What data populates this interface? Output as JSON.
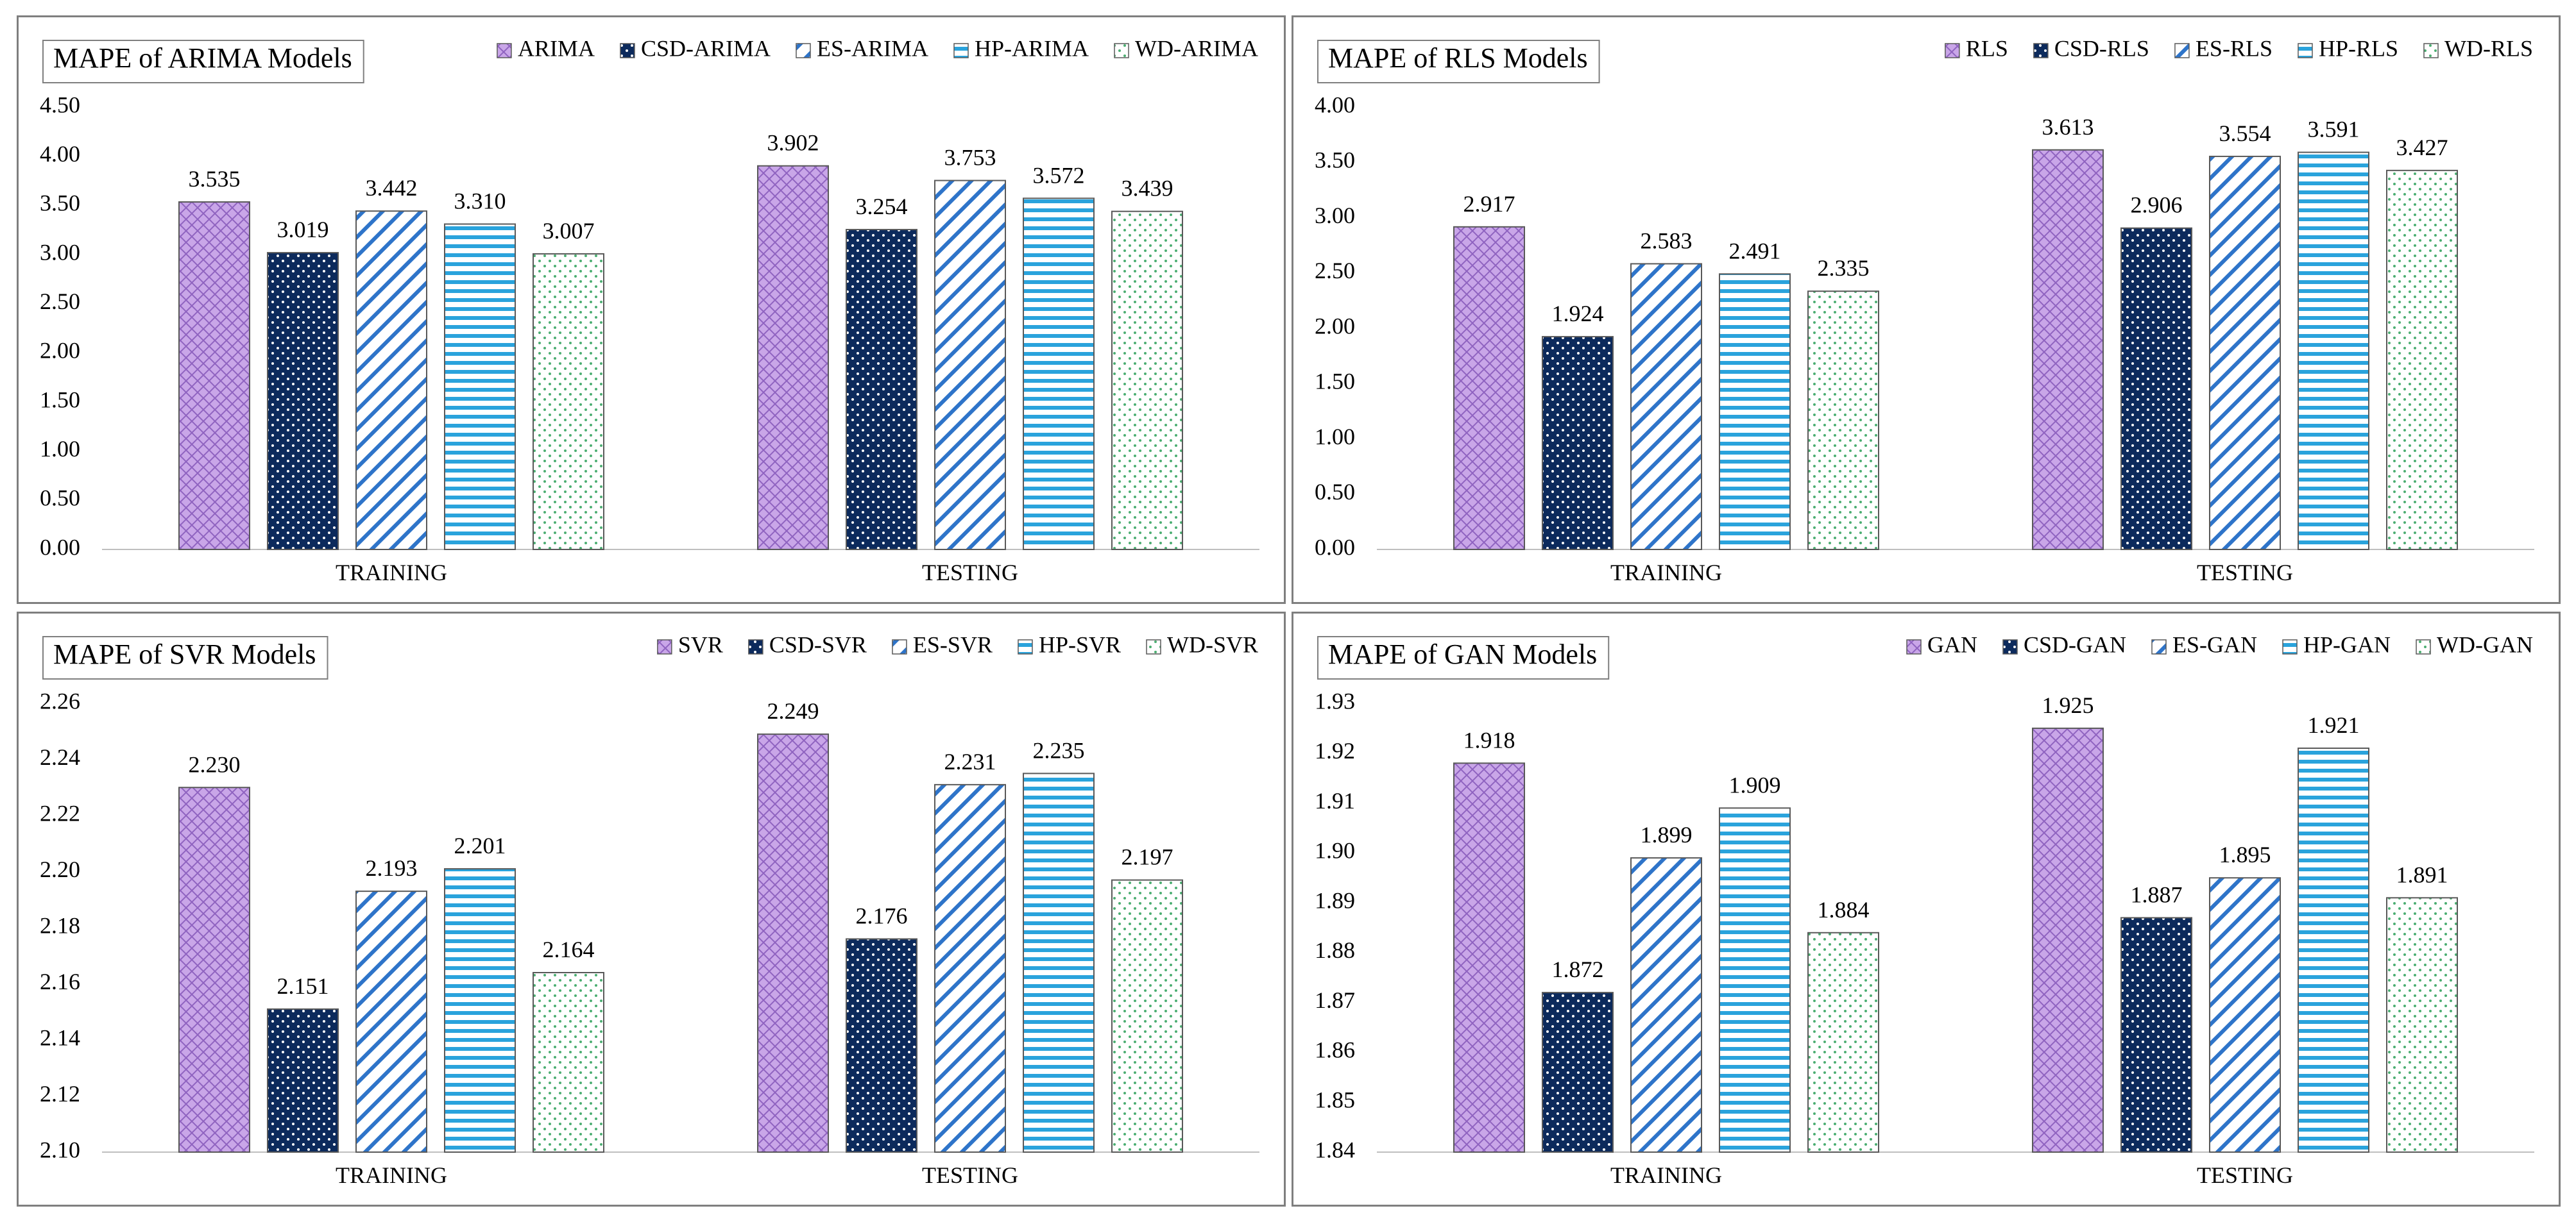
{
  "chart_data": [
    {
      "type": "bar",
      "title": "MAPE of ARIMA Models",
      "categories": [
        "TRAINING",
        "TESTING"
      ],
      "series": [
        {
          "name": "ARIMA",
          "values": [
            3.535,
            3.902
          ],
          "labels": [
            "3.535",
            "3.902"
          ]
        },
        {
          "name": "CSD-ARIMA",
          "values": [
            3.019,
            3.254
          ],
          "labels": [
            "3.019",
            "3.254"
          ]
        },
        {
          "name": "ES-ARIMA",
          "values": [
            3.442,
            3.753
          ],
          "labels": [
            "3.442",
            "3.753"
          ]
        },
        {
          "name": "HP-ARIMA",
          "values": [
            3.31,
            3.572
          ],
          "labels": [
            "3.310",
            "3.572"
          ]
        },
        {
          "name": "WD-ARIMA",
          "values": [
            3.007,
            3.439
          ],
          "labels": [
            "3.007",
            "3.439"
          ]
        }
      ],
      "ylim": [
        0,
        4.5
      ],
      "yticks": [
        "0.00",
        "0.50",
        "1.00",
        "1.50",
        "2.00",
        "2.50",
        "3.00",
        "3.50",
        "4.00",
        "4.50"
      ],
      "xlabel": "",
      "ylabel": "",
      "legend_position": "top-right",
      "grid": false
    },
    {
      "type": "bar",
      "title": "MAPE of RLS Models",
      "categories": [
        "TRAINING",
        "TESTING"
      ],
      "series": [
        {
          "name": "RLS",
          "values": [
            2.917,
            3.613
          ],
          "labels": [
            "2.917",
            "3.613"
          ]
        },
        {
          "name": "CSD-RLS",
          "values": [
            1.924,
            2.906
          ],
          "labels": [
            "1.924",
            "2.906"
          ]
        },
        {
          "name": "ES-RLS",
          "values": [
            2.583,
            3.554
          ],
          "labels": [
            "2.583",
            "3.554"
          ]
        },
        {
          "name": "HP-RLS",
          "values": [
            2.491,
            3.591
          ],
          "labels": [
            "2.491",
            "3.591"
          ]
        },
        {
          "name": "WD-RLS",
          "values": [
            2.335,
            3.427
          ],
          "labels": [
            "2.335",
            "3.427"
          ]
        }
      ],
      "ylim": [
        0,
        4
      ],
      "yticks": [
        "0.00",
        "0.50",
        "1.00",
        "1.50",
        "2.00",
        "2.50",
        "3.00",
        "3.50",
        "4.00"
      ],
      "xlabel": "",
      "ylabel": "",
      "legend_position": "top-right",
      "grid": false
    },
    {
      "type": "bar",
      "title": "MAPE of SVR Models",
      "categories": [
        "TRAINING",
        "TESTING"
      ],
      "series": [
        {
          "name": "SVR",
          "values": [
            2.23,
            2.249
          ],
          "labels": [
            "2.230",
            "2.249"
          ]
        },
        {
          "name": "CSD-SVR",
          "values": [
            2.151,
            2.176
          ],
          "labels": [
            "2.151",
            "2.176"
          ]
        },
        {
          "name": "ES-SVR",
          "values": [
            2.193,
            2.231
          ],
          "labels": [
            "2.193",
            "2.231"
          ]
        },
        {
          "name": "HP-SVR",
          "values": [
            2.201,
            2.235
          ],
          "labels": [
            "2.201",
            "2.235"
          ]
        },
        {
          "name": "WD-SVR",
          "values": [
            2.164,
            2.197
          ],
          "labels": [
            "2.164",
            "2.197"
          ]
        }
      ],
      "ylim": [
        2.1,
        2.26
      ],
      "yticks": [
        "2.10",
        "2.12",
        "2.14",
        "2.16",
        "2.18",
        "2.20",
        "2.22",
        "2.24",
        "2.26"
      ],
      "xlabel": "",
      "ylabel": "",
      "legend_position": "top-right",
      "grid": false
    },
    {
      "type": "bar",
      "title": "MAPE of GAN Models",
      "categories": [
        "TRAINING",
        "TESTING"
      ],
      "series": [
        {
          "name": "GAN",
          "values": [
            1.918,
            1.925
          ],
          "labels": [
            "1.918",
            "1.925"
          ]
        },
        {
          "name": "CSD-GAN",
          "values": [
            1.872,
            1.887
          ],
          "labels": [
            "1.872",
            "1.887"
          ]
        },
        {
          "name": "ES-GAN",
          "values": [
            1.899,
            1.895
          ],
          "labels": [
            "1.899",
            "1.895"
          ]
        },
        {
          "name": "HP-GAN",
          "values": [
            1.909,
            1.921
          ],
          "labels": [
            "1.909",
            "1.921"
          ]
        },
        {
          "name": "WD-GAN",
          "values": [
            1.884,
            1.891
          ],
          "labels": [
            "1.884",
            "1.891"
          ]
        }
      ],
      "ylim": [
        1.84,
        1.93
      ],
      "yticks": [
        "1.84",
        "1.85",
        "1.86",
        "1.87",
        "1.88",
        "1.89",
        "1.90",
        "1.91",
        "1.92",
        "1.93"
      ],
      "xlabel": "",
      "ylabel": "",
      "legend_position": "top-right",
      "grid": false
    }
  ],
  "series_styles": [
    {
      "pattern": "diamond-grid",
      "fill": "#c9a6e8",
      "line": "#8f63c0"
    },
    {
      "pattern": "dots",
      "fill": "#0c2a5c",
      "line": "#ffffff"
    },
    {
      "pattern": "diagonal-stripes",
      "fill": "#ffffff",
      "line": "#2e74c9"
    },
    {
      "pattern": "horizontal-stripes",
      "fill": "#ffffff",
      "line": "#2aa3dc"
    },
    {
      "pattern": "dots",
      "fill": "#ffffff",
      "line": "#4cae72"
    }
  ],
  "colors": {
    "axis": "#bfbfbf",
    "panel_border": "#7f7f7f",
    "bar_outline": "#595959"
  }
}
